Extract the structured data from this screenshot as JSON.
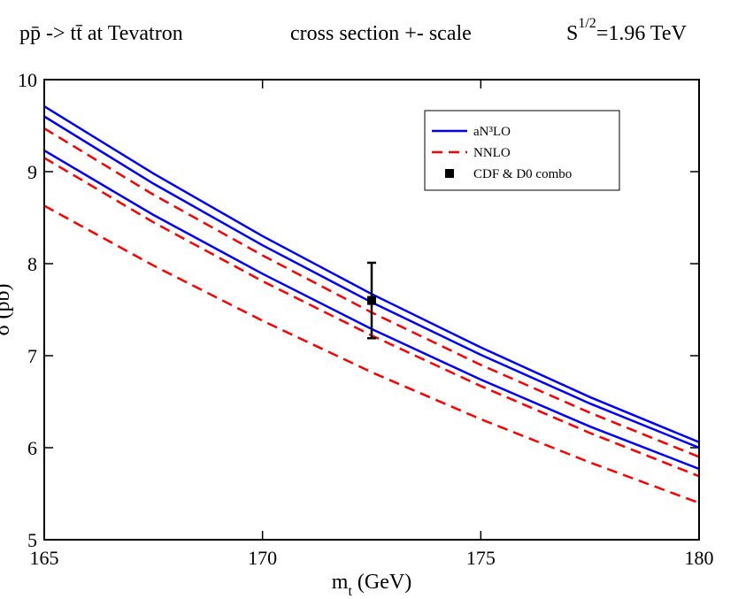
{
  "chart_data": {
    "type": "line",
    "title": "pp̄ -> tt̄   at  Tevatron",
    "subtitle": "cross section +- scale",
    "energy_label": {
      "base": "S",
      "sup": "1/2",
      "rest": "=1.96 TeV"
    },
    "x_label": {
      "base": "m",
      "sub": "t",
      "rest": " (GeV)"
    },
    "y_label": "σ (pb)",
    "x": [
      165,
      167.5,
      170,
      172.5,
      175,
      177.5,
      180
    ],
    "series": [
      {
        "name": "aN³LO",
        "color": "#0000ff",
        "dashed": false,
        "curves": [
          [
            9.71,
            8.98,
            8.3,
            7.67,
            7.09,
            6.55,
            6.06
          ],
          [
            9.6,
            8.87,
            8.2,
            7.58,
            7.01,
            6.48,
            6.0
          ],
          [
            9.23,
            8.53,
            7.89,
            7.29,
            6.74,
            6.23,
            5.77
          ]
        ]
      },
      {
        "name": "NNLO",
        "color": "#ff0000",
        "dashed": true,
        "curves": [
          [
            9.47,
            8.75,
            8.09,
            7.47,
            6.9,
            6.38,
            5.9
          ],
          [
            9.15,
            8.45,
            7.81,
            7.22,
            6.67,
            6.16,
            5.69
          ],
          [
            8.63,
            7.98,
            7.38,
            6.82,
            6.31,
            5.84,
            5.4
          ]
        ]
      }
    ],
    "points": {
      "name": "CDF & D0 combo",
      "color": "#000000",
      "x": [
        172.5
      ],
      "values": [
        7.6
      ],
      "errors": [
        0.41
      ]
    },
    "xlim": [
      165,
      180
    ],
    "xticks": [
      165,
      170,
      175,
      180
    ],
    "ylim": [
      5,
      10
    ],
    "yticks": [
      5,
      6,
      7,
      8,
      9,
      10
    ],
    "legend": "upper-right"
  }
}
